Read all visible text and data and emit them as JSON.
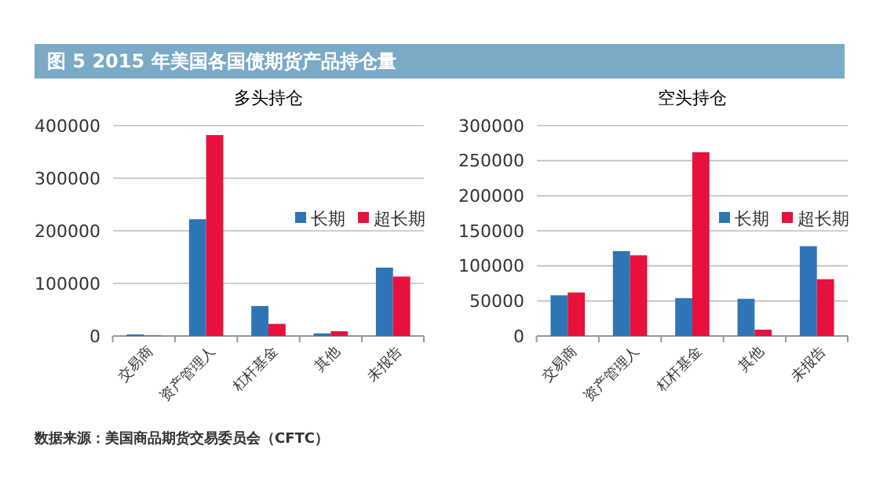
{
  "chart_data": [
    {
      "type": "bar",
      "title": "多头持仓",
      "annotations": [
        "图 5 2015 年美国各国债期货产品持仓量",
        "数据来源：美国商品期货交易委员会（CFTC）"
      ],
      "categories": [
        "交易商",
        "资产管理人",
        "杠杆基金",
        "其他",
        "未报告"
      ],
      "series": [
        {
          "name": "长期",
          "color": "#2e75b6",
          "values": [
            3000,
            222000,
            57000,
            5000,
            130000
          ]
        },
        {
          "name": "超长期",
          "color": "#e8103c",
          "values": [
            1000,
            382000,
            23000,
            9000,
            113000
          ]
        }
      ],
      "ylim": [
        0,
        400000
      ],
      "yticks": [
        0,
        100000,
        200000,
        300000,
        400000
      ],
      "grid": "y",
      "legend": "right"
    },
    {
      "type": "bar",
      "title": "空头持仓",
      "categories": [
        "交易商",
        "资产管理人",
        "杠杆基金",
        "其他",
        "未报告"
      ],
      "series": [
        {
          "name": "长期",
          "color": "#2e75b6",
          "values": [
            58000,
            121000,
            54000,
            53000,
            128000
          ]
        },
        {
          "name": "超长期",
          "color": "#e8103c",
          "values": [
            62000,
            115000,
            262000,
            9000,
            81000
          ]
        }
      ],
      "ylim": [
        0,
        300000
      ],
      "yticks": [
        0,
        50000,
        100000,
        150000,
        200000,
        250000,
        300000
      ],
      "grid": "y",
      "legend": "right"
    }
  ]
}
